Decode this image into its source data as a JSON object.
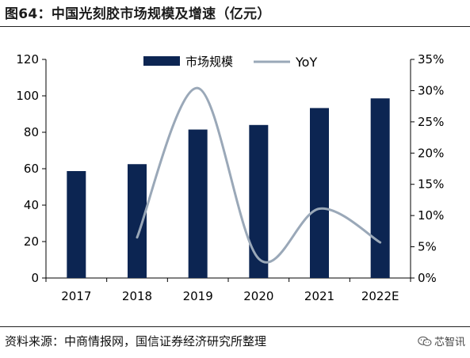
{
  "header": {
    "title": "图64：中国光刻胶市场规模及增速（亿元）"
  },
  "footer": {
    "source": "资料来源：中商情报网，国信证券经济研究所整理",
    "watermark": "芯智讯"
  },
  "colors": {
    "bar": "#0c2552",
    "line": "#9aa8b8",
    "axis": "#000000",
    "rule": "#222222"
  },
  "icons": {
    "watermark": "wechat-logo-icon"
  },
  "chart_data": {
    "type": "bar",
    "categories": [
      "2017",
      "2018",
      "2019",
      "2020",
      "2021",
      "2022E"
    ],
    "series": [
      {
        "name": "市场规模",
        "type": "bar",
        "axis": "left",
        "values": [
          58.7,
          62.5,
          81.5,
          84.0,
          93.3,
          98.6
        ]
      },
      {
        "name": "YoY",
        "type": "line",
        "axis": "right",
        "values": [
          null,
          6.5,
          30.4,
          3.1,
          11.1,
          5.7
        ]
      }
    ],
    "left_axis": {
      "ylim": [
        0,
        120
      ],
      "ticks": [
        0,
        20,
        40,
        60,
        80,
        100,
        120
      ]
    },
    "right_axis": {
      "ylim": [
        0,
        35
      ],
      "ticks": [
        0,
        5,
        10,
        15,
        20,
        25,
        30,
        35
      ],
      "tick_labels": [
        "0%",
        "5%",
        "10%",
        "15%",
        "20%",
        "25%",
        "30%",
        "35%"
      ]
    },
    "legend": {
      "position": "top-center",
      "entries": [
        "市场规模",
        "YoY"
      ]
    },
    "grid": false
  }
}
